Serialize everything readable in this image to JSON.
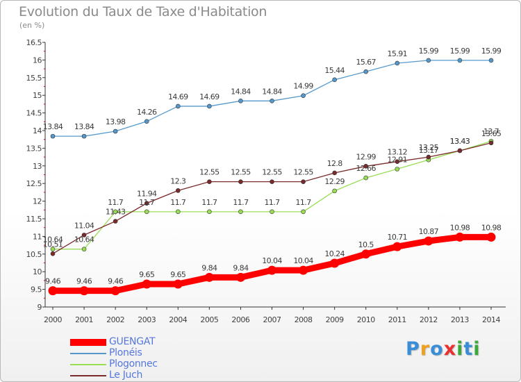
{
  "title": "Evolution du Taux de Taxe d'Habitation",
  "subtitle": "(en %)",
  "brand": {
    "letters": [
      "P",
      "r",
      "o",
      "x",
      "i",
      "t",
      "i"
    ],
    "colors": [
      "#3a8ed8",
      "#f0a020",
      "#3a8ed8",
      "#e83030",
      "#3aa83a",
      "#3a8ed8",
      "#3aa83a"
    ]
  },
  "chart_data": {
    "type": "line",
    "title": "Evolution du Taux de Taxe d'Habitation",
    "ylabel": "(en %)",
    "xlabel": "",
    "x": [
      "2000",
      "2001",
      "2002",
      "2003",
      "2004",
      "2005",
      "2006",
      "2007",
      "2008",
      "2009",
      "2010",
      "2011",
      "2012",
      "2013",
      "2014"
    ],
    "ylim": [
      9,
      16.5
    ],
    "yticks": [
      "9",
      "9.5",
      "10",
      "10.5",
      "11",
      "11.5",
      "12",
      "12.5",
      "13",
      "13.5",
      "14",
      "14.5",
      "15",
      "15.5",
      "16",
      "16.5"
    ],
    "grid": false,
    "legend_position": "bottom-left",
    "series": [
      {
        "name": "GUENGAT",
        "color": "#ff0000",
        "emphasis": true,
        "values": [
          9.46,
          9.46,
          9.46,
          9.65,
          9.65,
          9.84,
          9.84,
          10.04,
          10.04,
          10.24,
          10.5,
          10.71,
          10.87,
          10.98,
          10.98
        ],
        "labels": [
          "9.46",
          "9.46",
          "9.46",
          "9.65",
          "9.65",
          "9.84",
          "9.84",
          "10.04",
          "10.04",
          "10.24",
          "10.5",
          "10.71",
          "10.87",
          "10.98",
          "10.98"
        ]
      },
      {
        "name": "Plonéis",
        "color": "#5599cc",
        "emphasis": false,
        "values": [
          13.84,
          13.84,
          13.98,
          14.26,
          14.69,
          14.69,
          14.84,
          14.84,
          14.99,
          15.44,
          15.67,
          15.91,
          15.99,
          15.99,
          15.99
        ],
        "labels": [
          "13.84",
          "13.84",
          "13.98",
          "14.26",
          "14.69",
          "14.69",
          "14.84",
          "14.84",
          "14.99",
          "15.44",
          "15.67",
          "15.91",
          "15.99",
          "15.99",
          "15.99"
        ]
      },
      {
        "name": "Plogonnec",
        "color": "#99dd55",
        "emphasis": false,
        "values": [
          10.64,
          10.64,
          11.7,
          11.7,
          11.7,
          11.7,
          11.7,
          11.7,
          11.7,
          12.29,
          12.66,
          12.91,
          13.17,
          13.43,
          13.7
        ],
        "labels": [
          "10.64",
          "10.64",
          "11.7",
          "11.7",
          "11.7",
          "11.7",
          "11.7",
          "11.7",
          "11.7",
          "12.29",
          "12.66",
          "12.91",
          "13.17",
          "13.43",
          "13.7"
        ]
      },
      {
        "name": "Le Juch",
        "color": "#7a2a2a",
        "emphasis": false,
        "values": [
          10.51,
          11.04,
          11.43,
          11.94,
          12.3,
          12.55,
          12.55,
          12.55,
          12.55,
          12.8,
          12.99,
          13.12,
          13.25,
          13.43,
          13.65
        ],
        "labels": [
          "10.51",
          "11.04",
          "11.43",
          "11.94",
          "12.3",
          "12.55",
          "12.55",
          "12.55",
          "12.55",
          "12.8",
          "12.99",
          "13.12",
          "13.25",
          "13.43",
          "13.65"
        ]
      }
    ]
  }
}
